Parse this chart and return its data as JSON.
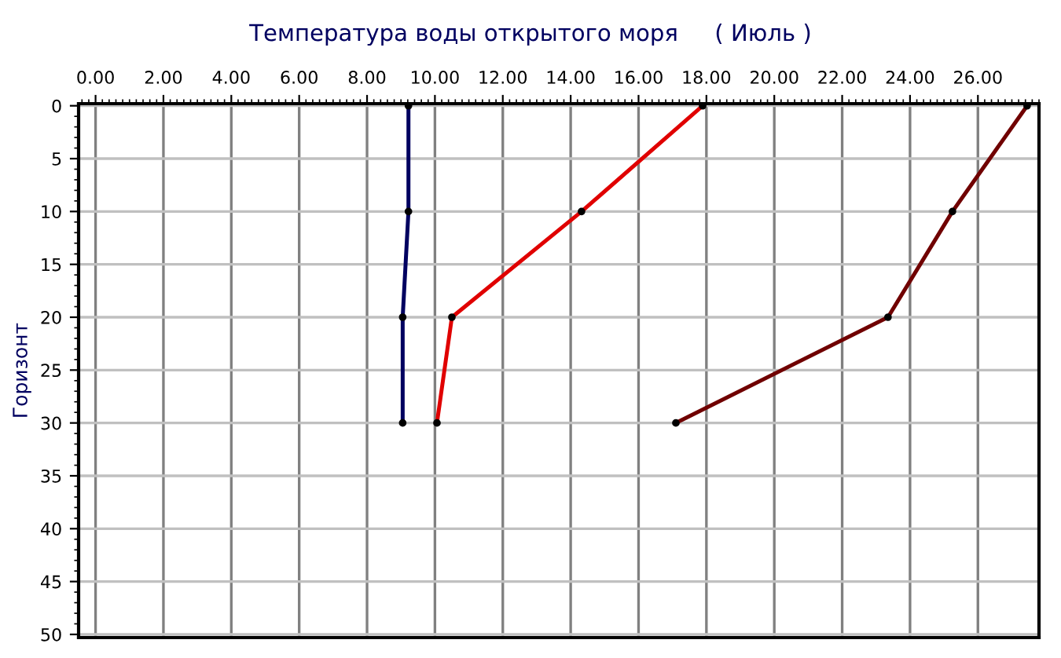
{
  "chart_data": {
    "type": "line",
    "title": "Температура воды открытого моря     ( Июль )",
    "ylabel": "Горизонт",
    "xlim": [
      -0.5,
      27.8
    ],
    "xticks": [
      {
        "value": 0,
        "label": "0.00"
      },
      {
        "value": 2,
        "label": "2.00"
      },
      {
        "value": 4,
        "label": "4.00"
      },
      {
        "value": 6,
        "label": "6.00"
      },
      {
        "value": 8,
        "label": "8.00"
      },
      {
        "value": 10,
        "label": "10.00"
      },
      {
        "value": 12,
        "label": "12.00"
      },
      {
        "value": 14,
        "label": "14.00"
      },
      {
        "value": 16,
        "label": "16.00"
      },
      {
        "value": 18,
        "label": "18.00"
      },
      {
        "value": 20,
        "label": "20.00"
      },
      {
        "value": 22,
        "label": "22.00"
      },
      {
        "value": 24,
        "label": "24.00"
      },
      {
        "value": 26,
        "label": "26.00"
      }
    ],
    "ylim": [
      50.3,
      -0.2
    ],
    "yticks": [
      0,
      5,
      10,
      15,
      20,
      25,
      30,
      35,
      40,
      45,
      50
    ],
    "grid": true,
    "marker": "circle",
    "line_style": "solid",
    "series": [
      {
        "color": "#000060",
        "x": [
          9.22,
          9.22,
          9.05,
          9.05
        ],
        "values": [
          0,
          10,
          20,
          30
        ]
      },
      {
        "color": "#e00000",
        "x": [
          17.89,
          14.32,
          10.5,
          10.06
        ],
        "values": [
          0,
          10,
          20,
          30
        ]
      },
      {
        "color": "#700000",
        "x": [
          27.45,
          25.25,
          23.35,
          17.1
        ],
        "values": [
          0,
          10,
          20,
          30
        ]
      }
    ]
  }
}
